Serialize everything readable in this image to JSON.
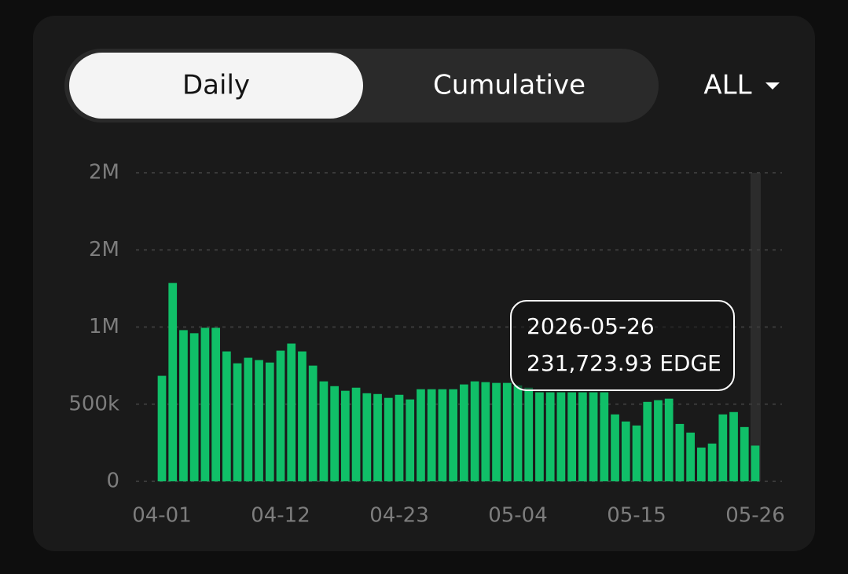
{
  "tabs": [
    "Daily",
    "Cumulative"
  ],
  "range": "ALL",
  "chart_data": {
    "type": "bar",
    "color": "#10bf68",
    "categories": [
      "04-01",
      null,
      null,
      null,
      null,
      null,
      null,
      null,
      null,
      null,
      null,
      "04-12",
      null,
      null,
      null,
      null,
      null,
      null,
      null,
      null,
      null,
      null,
      "04-23",
      null,
      null,
      null,
      null,
      null,
      null,
      null,
      null,
      null,
      null,
      "05-04",
      null,
      null,
      null,
      null,
      null,
      null,
      null,
      null,
      null,
      null,
      "05-15",
      null,
      null,
      null,
      null,
      null,
      null,
      null,
      null,
      null,
      null,
      "05-26"
    ],
    "values": [
      684000,
      1286000,
      980000,
      960000,
      995000,
      995000,
      842000,
      765000,
      801000,
      786000,
      770000,
      847000,
      893000,
      842000,
      750000,
      648000,
      617000,
      587000,
      607000,
      571000,
      566000,
      541000,
      561000,
      531000,
      597000,
      597000,
      597000,
      597000,
      628000,
      648000,
      643000,
      638000,
      638000,
      622000,
      607000,
      577000,
      577000,
      577000,
      577000,
      577000,
      577000,
      577000,
      434000,
      388000,
      362000,
      515000,
      526000,
      536000,
      372000,
      316000,
      219000,
      245000,
      434000,
      449000,
      352000,
      231723.93
    ],
    "ylim": [
      0,
      2000000
    ],
    "yticks": [
      0,
      {
        "value": 500000,
        "label": "500k"
      },
      {
        "value": 1000000,
        "label": "1M"
      },
      {
        "value": 1500000,
        "label": "2M"
      },
      {
        "value": 2000000,
        "label": "2M"
      }
    ],
    "grid": true,
    "tooltip": {
      "date": "2026-05-26",
      "text": "231,723.93 EDGE"
    }
  }
}
